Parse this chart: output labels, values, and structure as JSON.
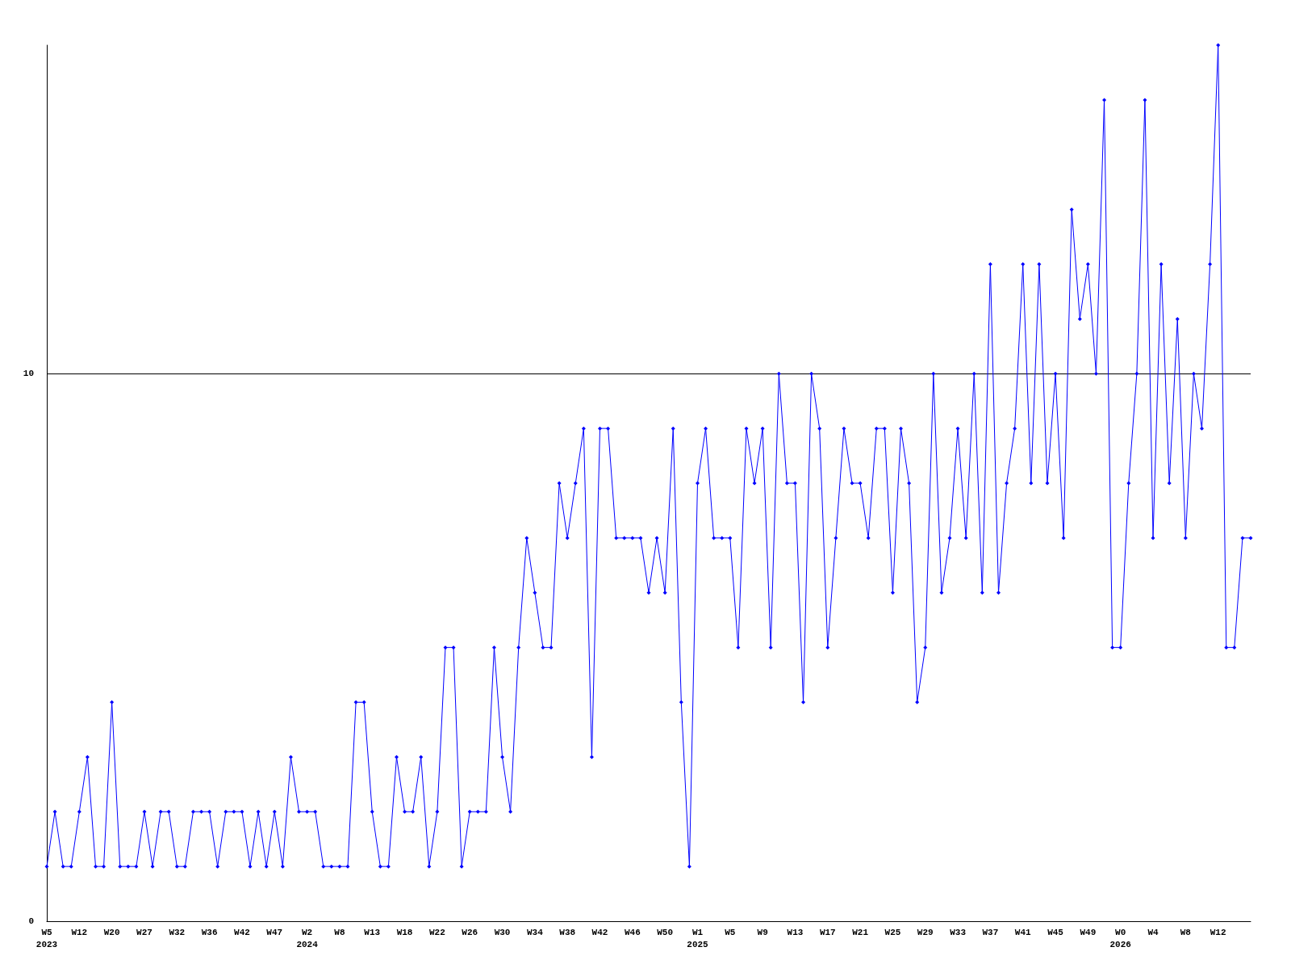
{
  "chart_data": {
    "type": "line",
    "categories": [
      "W5\n2023",
      null,
      null,
      null,
      "W12",
      null,
      null,
      null,
      "W20",
      null,
      null,
      null,
      "W27",
      null,
      null,
      null,
      "W32",
      null,
      null,
      null,
      "W36",
      null,
      null,
      null,
      "W42",
      null,
      null,
      null,
      "W47",
      null,
      null,
      null,
      "W2\n2024",
      null,
      null,
      null,
      "W8",
      null,
      null,
      null,
      "W13",
      null,
      null,
      null,
      "W18",
      null,
      null,
      null,
      "W22",
      null,
      null,
      null,
      "W26",
      null,
      null,
      null,
      "W30",
      null,
      null,
      null,
      "W34",
      null,
      null,
      null,
      "W38",
      null,
      null,
      null,
      "W42",
      null,
      null,
      null,
      "W46",
      null,
      null,
      null,
      "W50",
      null,
      null,
      null,
      "W1\n2025",
      null,
      null,
      null,
      "W5",
      null,
      null,
      null,
      "W9",
      null,
      null,
      null,
      "W13",
      null,
      null,
      null,
      "W17",
      null,
      null,
      null,
      "W21",
      null,
      null,
      null,
      "W25",
      null,
      null,
      null,
      "W29",
      null,
      null,
      null,
      "W33",
      null,
      null,
      null,
      "W37",
      null,
      null,
      null,
      "W41",
      null,
      null,
      null,
      "W45",
      null,
      null,
      null,
      "W49",
      null,
      null,
      null,
      "W0\n2026",
      null,
      null,
      null,
      "W4",
      null,
      null,
      null,
      "W8",
      null,
      null,
      null,
      "W12",
      null,
      null,
      null,
      null
    ],
    "series": [
      {
        "color": "#0000ff",
        "values": [
          1,
          2,
          1,
          1,
          2,
          3,
          1,
          1,
          4,
          1,
          1,
          1,
          2,
          1,
          2,
          2,
          1,
          1,
          2,
          2,
          2,
          1,
          2,
          2,
          2,
          1,
          2,
          1,
          2,
          1,
          3,
          2,
          2,
          2,
          1,
          1,
          1,
          1,
          4,
          4,
          2,
          1,
          1,
          3,
          2,
          2,
          3,
          1,
          2,
          5,
          5,
          1,
          2,
          2,
          2,
          5,
          3,
          2,
          5,
          7,
          6,
          5,
          5,
          8,
          7,
          8,
          9,
          3,
          9,
          9,
          7,
          7,
          7,
          7,
          6,
          7,
          6,
          9,
          4,
          1,
          8,
          9,
          7,
          7,
          7,
          5,
          9,
          8,
          9,
          5,
          10,
          8,
          8,
          4,
          10,
          9,
          5,
          7,
          9,
          8,
          8,
          7,
          9,
          9,
          6,
          9,
          8,
          4,
          5,
          10,
          6,
          7,
          9,
          7,
          10,
          6,
          12,
          6,
          8,
          9,
          12,
          8,
          12,
          8,
          10,
          7,
          13,
          11,
          12,
          10,
          15,
          5,
          5,
          8,
          10,
          15,
          7,
          12,
          8,
          11,
          7,
          10,
          9,
          12,
          16,
          5,
          5,
          7,
          7
        ]
      }
    ],
    "ylim": [
      0,
      16
    ],
    "yticks": [
      0,
      10
    ],
    "grid": "y",
    "marker": "diamond",
    "line_style": "solid"
  }
}
